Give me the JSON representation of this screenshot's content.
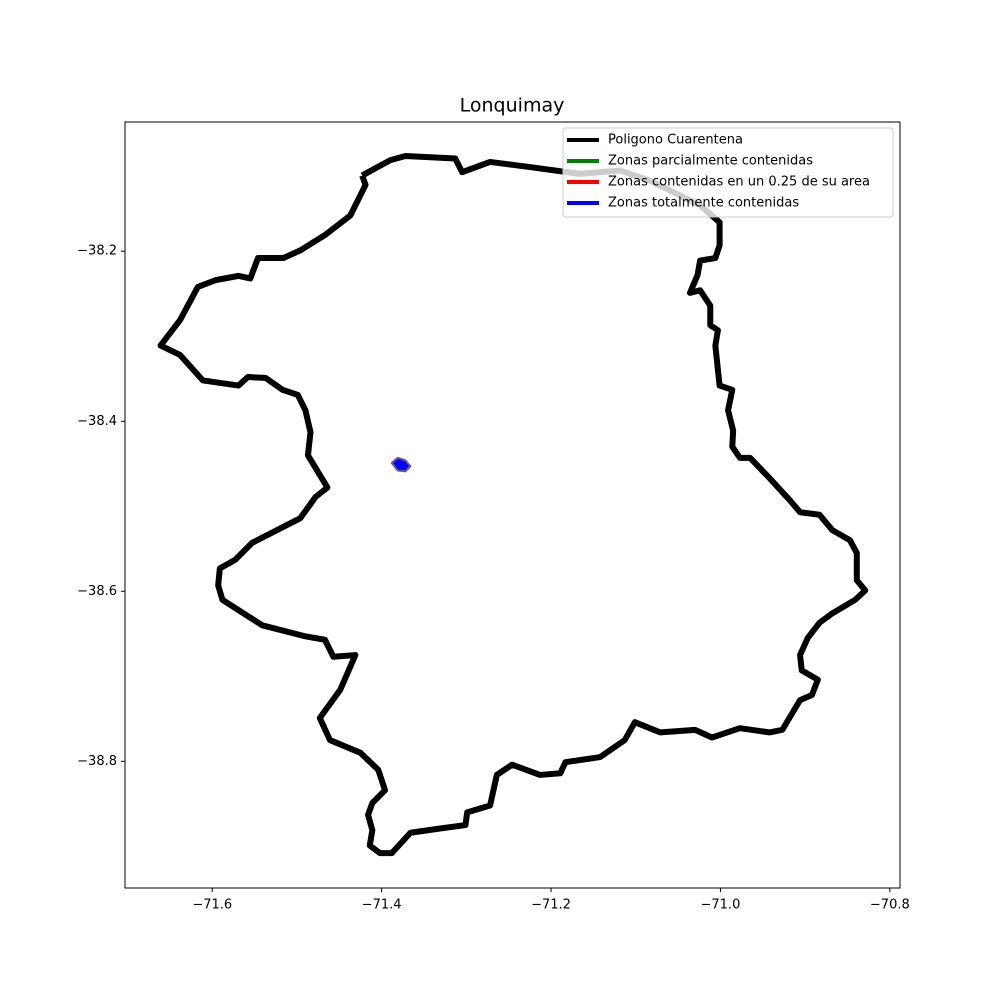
{
  "chart_data": {
    "type": "map",
    "title": "Lonquimay",
    "xlim": [
      -71.703,
      -70.788
    ],
    "ylim": [
      -38.949,
      -38.048
    ],
    "xticks": [
      {
        "value": -71.6,
        "label": "−71.6"
      },
      {
        "value": -71.4,
        "label": "−71.4"
      },
      {
        "value": -71.2,
        "label": "−71.2"
      },
      {
        "value": -71.0,
        "label": "−71.0"
      },
      {
        "value": -70.8,
        "label": "−70.8"
      }
    ],
    "yticks": [
      {
        "value": -38.2,
        "label": "−38.2"
      },
      {
        "value": -38.4,
        "label": "−38.4"
      },
      {
        "value": -38.6,
        "label": "−38.6"
      },
      {
        "value": -38.8,
        "label": "−38.8"
      }
    ],
    "legend": "upper right",
    "series": [
      {
        "name": "Poligono Cuarentena",
        "color": "#000000",
        "x": [
          -71.423,
          -71.39,
          -71.372,
          -71.313,
          -71.305,
          -71.272,
          -71.225,
          -71.166,
          -71.119,
          -71.083,
          -71.024,
          -71.001,
          -71.001,
          -71.006,
          -71.024,
          -71.027,
          -71.036,
          -71.024,
          -71.012,
          -71.012,
          -71.003,
          -71.006,
          -71.001,
          -70.986,
          -70.991,
          -70.985,
          -70.986,
          -70.977,
          -70.965,
          -70.942,
          -70.918,
          -70.906,
          -70.883,
          -70.868,
          -70.847,
          -70.839,
          -70.839,
          -70.829,
          -70.841,
          -70.868,
          -70.883,
          -70.897,
          -70.906,
          -70.904,
          -70.885,
          -70.892,
          -70.906,
          -70.927,
          -70.942,
          -70.977,
          -71.01,
          -71.03,
          -71.071,
          -71.101,
          -71.113,
          -71.142,
          -71.183,
          -71.189,
          -71.213,
          -71.246,
          -71.264,
          -71.272,
          -71.299,
          -71.301,
          -71.331,
          -71.366,
          -71.388,
          -71.402,
          -71.414,
          -71.411,
          -71.416,
          -71.411,
          -71.396,
          -71.404,
          -71.425,
          -71.461,
          -71.473,
          -71.449,
          -71.431,
          -71.457,
          -71.467,
          -71.49,
          -71.541,
          -71.588,
          -71.593,
          -71.591,
          -71.573,
          -71.553,
          -71.496,
          -71.478,
          -71.464,
          -71.487,
          -71.484,
          -71.49,
          -71.499,
          -71.517,
          -71.537,
          -71.558,
          -71.569,
          -71.611,
          -71.638,
          -71.661,
          -71.638,
          -71.617,
          -71.596,
          -71.569,
          -71.555,
          -71.546,
          -71.516,
          -71.496,
          -71.467,
          -71.437,
          -71.419,
          -71.423
        ],
        "y": [
          -38.111,
          -38.093,
          -38.088,
          -38.091,
          -38.107,
          -38.095,
          -38.101,
          -38.109,
          -38.105,
          -38.117,
          -38.146,
          -38.166,
          -38.193,
          -38.208,
          -38.211,
          -38.228,
          -38.249,
          -38.246,
          -38.264,
          -38.287,
          -38.293,
          -38.311,
          -38.358,
          -38.363,
          -38.387,
          -38.411,
          -38.43,
          -38.443,
          -38.443,
          -38.467,
          -38.493,
          -38.507,
          -38.51,
          -38.528,
          -38.54,
          -38.555,
          -38.587,
          -38.599,
          -38.61,
          -38.626,
          -38.637,
          -38.655,
          -38.675,
          -38.693,
          -38.704,
          -38.722,
          -38.728,
          -38.763,
          -38.766,
          -38.761,
          -38.772,
          -38.763,
          -38.766,
          -38.754,
          -38.775,
          -38.795,
          -38.801,
          -38.814,
          -38.816,
          -38.804,
          -38.816,
          -38.852,
          -38.86,
          -38.875,
          -38.879,
          -38.884,
          -38.908,
          -38.908,
          -38.899,
          -38.881,
          -38.863,
          -38.849,
          -38.834,
          -38.81,
          -38.79,
          -38.775,
          -38.749,
          -38.716,
          -38.675,
          -38.677,
          -38.657,
          -38.653,
          -38.64,
          -38.61,
          -38.593,
          -38.573,
          -38.563,
          -38.543,
          -38.514,
          -38.489,
          -38.478,
          -38.44,
          -38.413,
          -38.387,
          -38.369,
          -38.363,
          -38.349,
          -38.348,
          -38.358,
          -38.352,
          -38.322,
          -38.311,
          -38.281,
          -38.242,
          -38.234,
          -38.229,
          -38.232,
          -38.208,
          -38.208,
          -38.199,
          -38.181,
          -38.158,
          -38.122,
          -38.111
        ]
      },
      {
        "name": "Zonas parcialmente contenidas",
        "color": "#008000",
        "x": [],
        "y": []
      },
      {
        "name": "Zonas contenidas en un 0.25 de su area",
        "color": "#ff0000",
        "x": [],
        "y": []
      },
      {
        "name": "Zonas totalmente contenidas",
        "color": "#0000ff",
        "x": [
          -71.388,
          -71.381,
          -71.372,
          -71.366,
          -71.372,
          -71.381
        ],
        "y": [
          -38.449,
          -38.443,
          -38.446,
          -38.453,
          -38.459,
          -38.458
        ]
      }
    ]
  }
}
